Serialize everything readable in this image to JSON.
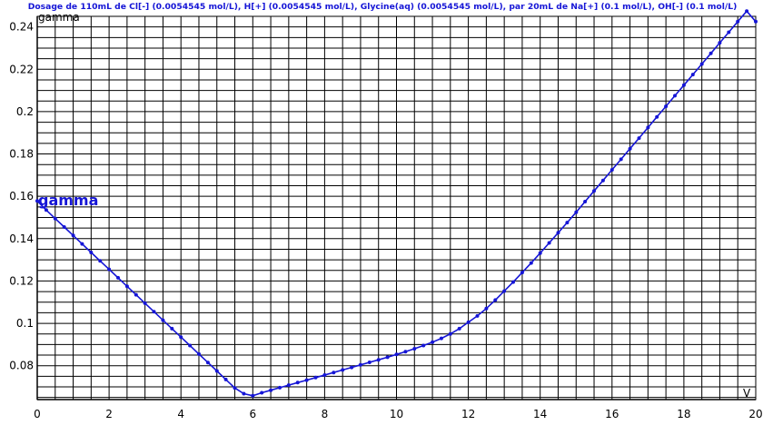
{
  "chart_data": {
    "type": "line",
    "title": "Dosage de 110mL de Cl[-] (0.0054545 mol/L), H[+] (0.0054545 mol/L), Glycine(aq) (0.0054545 mol/L),  par 20mL  de Na[+] (0.1 mol/L), OH[-] (0.1 mol/L)",
    "xlabel": "V",
    "ylabel": "gamma",
    "xlim": [
      0,
      20
    ],
    "ylim": [
      0.064,
      0.245
    ],
    "grid": true,
    "x_ticks": [
      0,
      2,
      4,
      6,
      8,
      10,
      12,
      14,
      16,
      18,
      20
    ],
    "y_ticks": [
      0.08,
      0.1,
      0.12,
      0.14,
      0.16,
      0.18,
      0.2,
      0.22,
      0.24
    ],
    "series": [
      {
        "name": "gamma",
        "color": "#1515d6",
        "x": [
          0,
          0.25,
          0.5,
          0.75,
          1.0,
          1.25,
          1.5,
          1.75,
          2.0,
          2.25,
          2.5,
          2.75,
          3.0,
          3.25,
          3.5,
          3.75,
          4.0,
          4.25,
          4.5,
          4.75,
          5.0,
          5.25,
          5.5,
          5.75,
          6.0,
          6.25,
          6.5,
          6.75,
          7.0,
          7.25,
          7.5,
          7.75,
          8.0,
          8.25,
          8.5,
          8.75,
          9.0,
          9.25,
          9.5,
          9.75,
          10.0,
          10.25,
          10.5,
          10.75,
          11.0,
          11.25,
          11.5,
          11.75,
          12.0,
          12.25,
          12.5,
          12.75,
          13.0,
          13.25,
          13.5,
          13.75,
          14.0,
          14.25,
          14.5,
          14.75,
          15.0,
          15.25,
          15.5,
          15.75,
          16.0,
          16.25,
          16.5,
          16.75,
          17.0,
          17.25,
          17.5,
          17.75,
          18.0,
          18.25,
          18.5,
          18.75,
          19.0,
          19.25,
          19.5,
          19.75,
          20.0
        ],
        "y": [
          0.1578,
          0.1535,
          0.1495,
          0.1455,
          0.1415,
          0.1375,
          0.1335,
          0.1295,
          0.1255,
          0.1215,
          0.1175,
          0.1135,
          0.1095,
          0.1055,
          0.1015,
          0.0975,
          0.0935,
          0.0895,
          0.0855,
          0.0815,
          0.0775,
          0.0735,
          0.0695,
          0.0668,
          0.0658,
          0.0672,
          0.0684,
          0.0696,
          0.0708,
          0.072,
          0.0732,
          0.0744,
          0.0756,
          0.0768,
          0.078,
          0.0792,
          0.0804,
          0.0816,
          0.0828,
          0.084,
          0.0853,
          0.0866,
          0.088,
          0.0895,
          0.0911,
          0.0929,
          0.095,
          0.0975,
          0.1005,
          0.1035,
          0.107,
          0.111,
          0.1152,
          0.1195,
          0.124,
          0.1285,
          0.1332,
          0.138,
          0.1428,
          0.1476,
          0.1525,
          0.1575,
          0.1625,
          0.1675,
          0.1725,
          0.1775,
          0.1825,
          0.1875,
          0.1925,
          0.1975,
          0.2025,
          0.2075,
          0.2125,
          0.2175,
          0.2225,
          0.2275,
          0.2325,
          0.2375,
          0.2425,
          0.2475,
          0.2425
        ]
      }
    ]
  }
}
